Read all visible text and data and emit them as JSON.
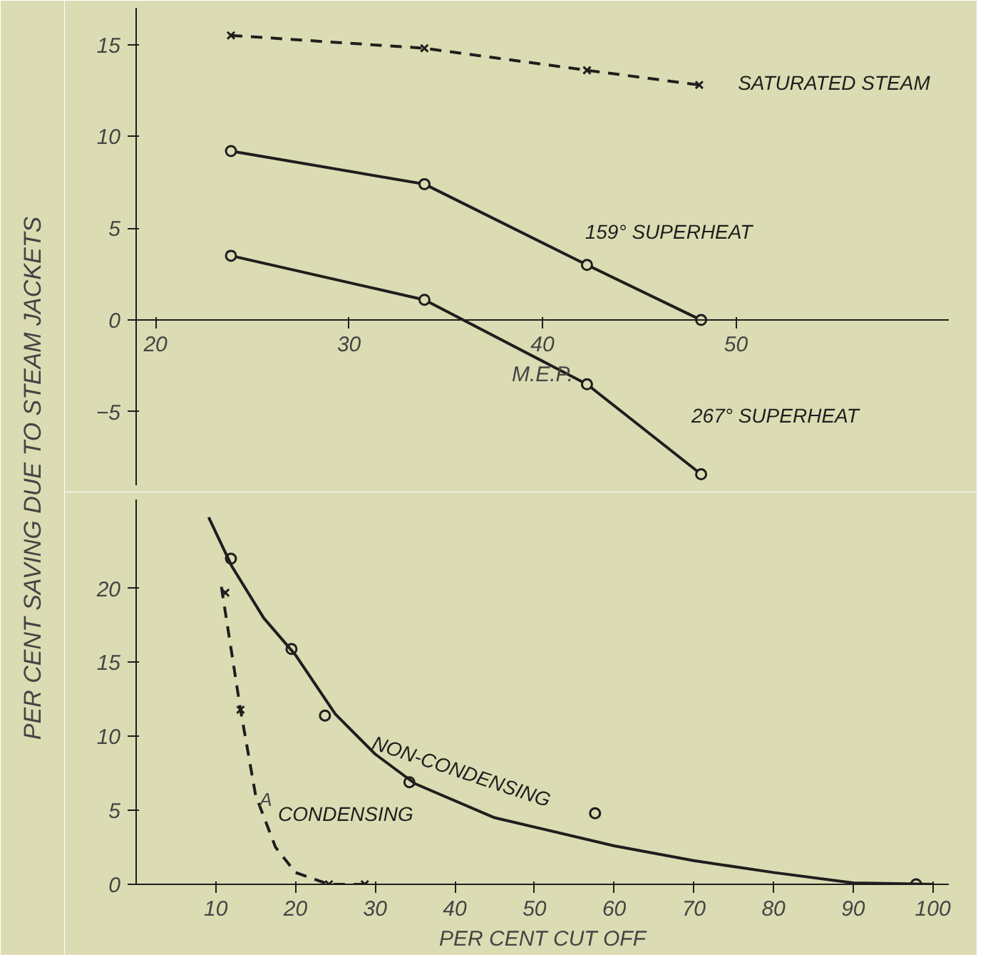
{
  "chart_data": [
    {
      "type": "line",
      "xlabel": "M.E.P.",
      "ylabel": "PER CENT SAVING DUE TO STEAM JACKETS",
      "xlim": [
        19,
        61
      ],
      "ylim": [
        -9,
        17
      ],
      "xticks": [
        20,
        30,
        40,
        50
      ],
      "yticks": [
        -5,
        0,
        5,
        10,
        15
      ],
      "grid": false,
      "series": [
        {
          "name": "SATURATED STEAM",
          "color": "#1e1e1e",
          "x": [
            23.9,
            33.9,
            42.3,
            48.1
          ],
          "values": [
            15.5,
            14.8,
            13.6,
            12.8
          ],
          "marker": "cross",
          "line_style": "dashed"
        },
        {
          "name": "159° SUPERHEAT",
          "color": "#1e1e1e",
          "x": [
            23.9,
            33.9,
            42.3,
            48.2
          ],
          "values": [
            9.2,
            7.4,
            3.0,
            0
          ],
          "marker": "circle",
          "line_style": "solid"
        },
        {
          "name": "267° SUPERHEAT",
          "color": "#1e1e1e",
          "x": [
            23.9,
            33.9,
            42.3,
            48.2
          ],
          "values": [
            3.5,
            1.1,
            -3.5,
            -8.4
          ],
          "marker": "circle",
          "line_style": "solid"
        }
      ]
    },
    {
      "type": "scatter",
      "xlabel": "PER CENT CUT OFF",
      "xlim": [
        0,
        102
      ],
      "ylim": [
        0,
        26
      ],
      "xticks": [
        10,
        20,
        30,
        40,
        50,
        60,
        70,
        80,
        90,
        100
      ],
      "yticks": [
        0,
        5,
        10,
        15,
        20
      ],
      "grid": false,
      "annotations": [
        {
          "text": "A",
          "x": 15.5,
          "y": 5
        }
      ],
      "series": [
        {
          "name": "NON-CONDENSING",
          "color": "#1e1e1e",
          "x": [
            11.9,
            19.5,
            23.7,
            34.3,
            57.6,
            97.9
          ],
          "values": [
            22.0,
            15.9,
            11.4,
            6.9,
            4.8,
            0
          ],
          "marker": "circle"
        },
        {
          "type": "line",
          "color": "#1e1e1e",
          "x": [
            9.1,
            12,
            16,
            20,
            25,
            30,
            35,
            45,
            60,
            70,
            80,
            90,
            100
          ],
          "values": [
            24.8,
            21.5,
            18,
            15.5,
            11.5,
            8.8,
            6.8,
            4.5,
            2.6,
            1.6,
            0.8,
            0.1,
            0
          ],
          "marker": "none",
          "line_style": "solid"
        },
        {
          "color": "#1e1e1e",
          "x": [
            11.2,
            13.1,
            24.2,
            28.7
          ],
          "values": [
            19.7,
            11.8,
            0,
            0
          ],
          "marker": "cross"
        },
        {
          "type": "line",
          "name": "CONDENSING",
          "color": "#1e1e1e",
          "x": [
            10.7,
            13.1,
            15,
            17.5,
            20,
            24.2,
            28.7
          ],
          "values": [
            20.1,
            11.8,
            6,
            2.5,
            0.8,
            0,
            0
          ],
          "marker": "none",
          "line_style": "dashed"
        }
      ]
    }
  ]
}
